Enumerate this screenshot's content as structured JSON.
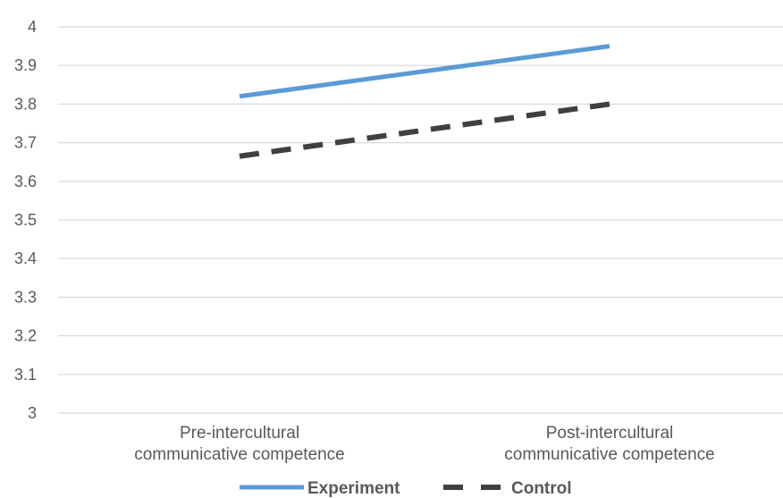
{
  "chart_data": {
    "type": "line",
    "categories": [
      [
        "Pre-intercultural",
        "communicative competence"
      ],
      [
        "Post-intercultural",
        "communicative competence"
      ]
    ],
    "series": [
      {
        "name": "Experiment",
        "values": [
          3.82,
          3.95
        ],
        "color": "#5b9bd5",
        "dash": "solid"
      },
      {
        "name": "Control",
        "values": [
          3.665,
          3.8
        ],
        "color": "#404040",
        "dash": "dashed"
      }
    ],
    "ylim": [
      3,
      4
    ],
    "yticks": [
      "3",
      "3.1",
      "3.2",
      "3.3",
      "3.4",
      "3.5",
      "3.6",
      "3.7",
      "3.8",
      "3.9",
      "4"
    ],
    "grid": true,
    "gridColor": "#d9d9d9",
    "legend_position": "bottom"
  }
}
